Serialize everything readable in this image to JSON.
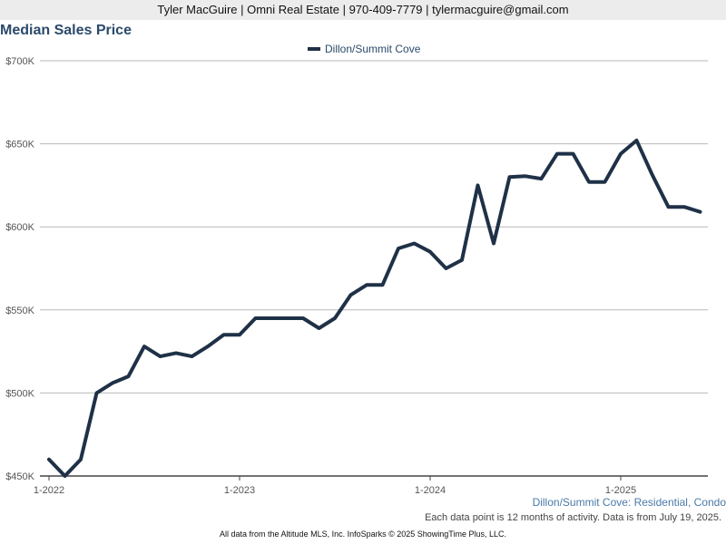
{
  "header": {
    "contact_line": "Tyler MacGuire | Omni Real Estate | 970-409-7779 | tylermacguire@gmail.com"
  },
  "chart_data": {
    "type": "line",
    "title": "Median Sales Price",
    "xlabel": "",
    "ylabel": "",
    "ylim": [
      450000,
      700000
    ],
    "yticks": [
      450000,
      500000,
      550000,
      600000,
      650000,
      700000
    ],
    "ytick_labels": [
      "$450K",
      "$500K",
      "$550K",
      "$600K",
      "$650K",
      "$700K"
    ],
    "xtick_labels": [
      {
        "label": "1-2022",
        "date": "2022-01"
      },
      {
        "label": "1-2023",
        "date": "2023-01"
      },
      {
        "label": "1-2024",
        "date": "2024-01"
      },
      {
        "label": "1-2025",
        "date": "2025-01"
      }
    ],
    "grid": true,
    "legend_position": "top-center",
    "series": [
      {
        "name": "Dillon/Summit Cove",
        "color": "#1f3147",
        "x": [
          "2022-01",
          "2022-02",
          "2022-03",
          "2022-04",
          "2022-05",
          "2022-06",
          "2022-07",
          "2022-08",
          "2022-09",
          "2022-10",
          "2022-11",
          "2022-12",
          "2023-01",
          "2023-02",
          "2023-03",
          "2023-04",
          "2023-05",
          "2023-06",
          "2023-07",
          "2023-08",
          "2023-09",
          "2023-10",
          "2023-11",
          "2023-12",
          "2024-01",
          "2024-02",
          "2024-03",
          "2024-04",
          "2024-05",
          "2024-06",
          "2024-07",
          "2024-08",
          "2024-09",
          "2024-10",
          "2024-11",
          "2024-12",
          "2025-01",
          "2025-02",
          "2025-03",
          "2025-04",
          "2025-05",
          "2025-06"
        ],
        "values": [
          460000,
          450000,
          460000,
          500000,
          506000,
          510000,
          528000,
          522000,
          524000,
          522000,
          528000,
          535000,
          535000,
          545000,
          545000,
          545000,
          545000,
          539000,
          545000,
          559000,
          565000,
          565000,
          587000,
          590000,
          585000,
          575000,
          580000,
          625000,
          590000,
          630000,
          630500,
          629000,
          644000,
          644000,
          627000,
          627000,
          644000,
          652000,
          631000,
          612000,
          612000,
          609000
        ]
      }
    ]
  },
  "subtitle": "Dillon/Summit Cove: Residential, Condo",
  "footnote": "Each data point is 12 months of activity. Data is from July 19, 2025.",
  "footer": "All data from the Altitude MLS, Inc. InfoSparks © 2025 ShowingTime Plus, LLC."
}
